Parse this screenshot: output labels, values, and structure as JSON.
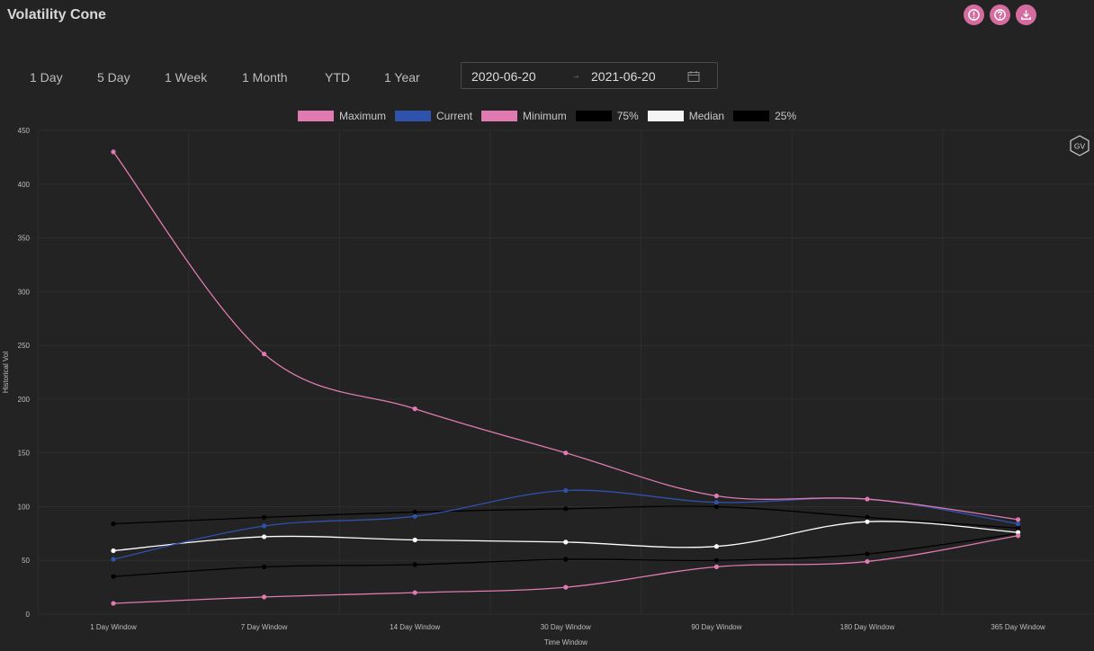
{
  "header": {
    "title": "Volatility Cone",
    "actions": [
      {
        "name": "alert-icon-button"
      },
      {
        "name": "help-icon-button"
      },
      {
        "name": "download-icon-button"
      }
    ]
  },
  "ranges": [
    "1 Day",
    "5 Day",
    "1 Week",
    "1 Month",
    "YTD",
    "1 Year"
  ],
  "date_range": {
    "start": "2020-06-20",
    "separator": "→",
    "end": "2021-06-20"
  },
  "badge": {
    "label": "GV"
  },
  "colors": {
    "background": "#232323",
    "maximum": "#e07ab0",
    "current": "#2f52ad",
    "minimum": "#e07ab0",
    "p75": "#000000",
    "median": "#ffffff",
    "p25": "#000000",
    "accent": "#d56c9f"
  },
  "chart_data": {
    "type": "line",
    "xlabel": "Time Window",
    "ylabel": "Historical Vol",
    "categories": [
      "1 Day Window",
      "7 Day Window",
      "14 Day Window",
      "30 Day Window",
      "90 Day Window",
      "180 Day Window",
      "365 Day Window"
    ],
    "ylim": [
      0,
      450
    ],
    "yticks": [
      0,
      50,
      100,
      150,
      200,
      250,
      300,
      350,
      400,
      450
    ],
    "grid": true,
    "legend_position": "top",
    "series": [
      {
        "name": "Maximum",
        "color": "#e07ab0",
        "values": [
          430,
          242,
          191,
          150,
          110,
          107,
          88
        ]
      },
      {
        "name": "Current",
        "color": "#2f52ad",
        "values": [
          51,
          82,
          91,
          115,
          104,
          107,
          84
        ]
      },
      {
        "name": "Minimum",
        "color": "#e07ab0",
        "values": [
          10,
          16,
          20,
          25,
          44,
          49,
          73
        ]
      },
      {
        "name": "75%",
        "color": "#000000",
        "values": [
          84,
          90,
          95,
          98,
          100,
          90,
          80
        ]
      },
      {
        "name": "Median",
        "color": "#ffffff",
        "values": [
          59,
          72,
          69,
          67,
          63,
          86,
          76
        ]
      },
      {
        "name": "25%",
        "color": "#000000",
        "values": [
          35,
          44,
          46,
          51,
          50,
          56,
          75
        ]
      }
    ]
  }
}
